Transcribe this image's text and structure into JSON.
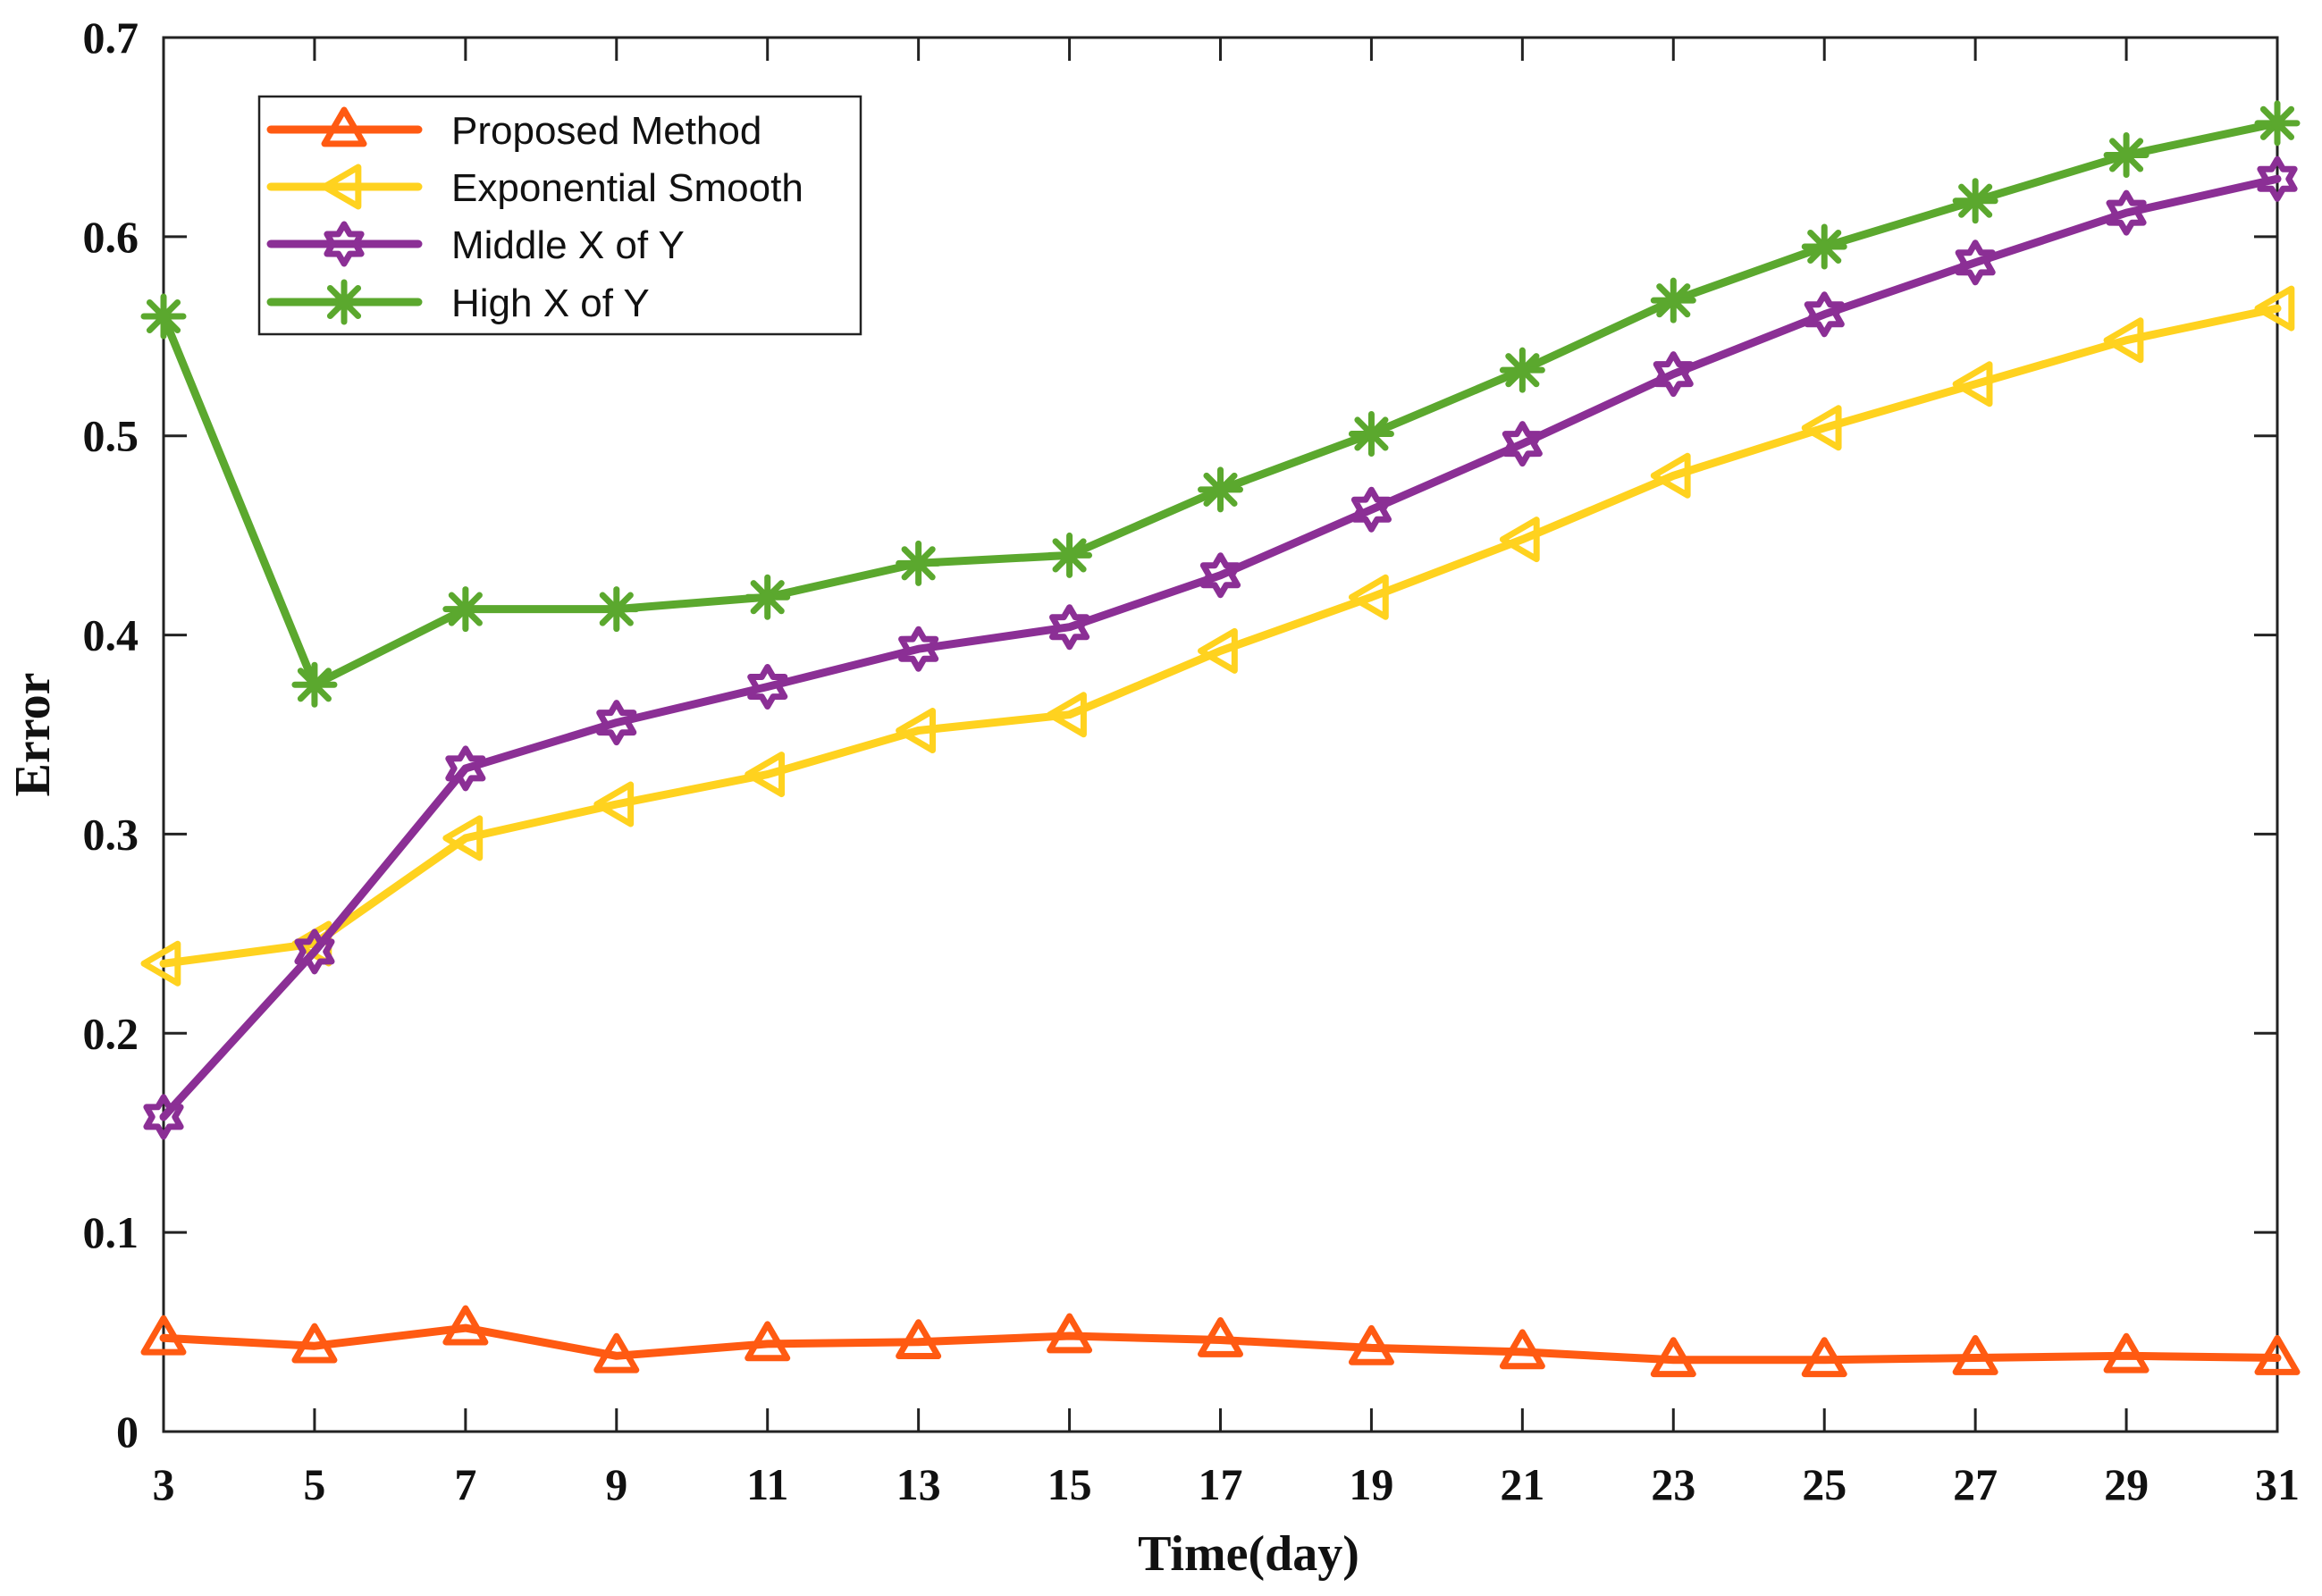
{
  "chart_data": {
    "type": "line",
    "title": "",
    "xlabel": "Time(day)",
    "ylabel": "Error",
    "x": [
      3,
      5,
      7,
      9,
      11,
      13,
      15,
      17,
      19,
      21,
      23,
      25,
      27,
      29,
      31
    ],
    "xlim": [
      3,
      31
    ],
    "ylim": [
      0,
      0.7
    ],
    "xticks": [
      "3",
      "5",
      "7",
      "9",
      "11",
      "13",
      "15",
      "17",
      "19",
      "21",
      "23",
      "25",
      "27",
      "29",
      "31"
    ],
    "yticks": [
      "0",
      "0.1",
      "0.2",
      "0.3",
      "0.4",
      "0.5",
      "0.6",
      "0.7"
    ],
    "ytick_values": [
      0,
      0.1,
      0.2,
      0.3,
      0.4,
      0.5,
      0.6,
      0.7
    ],
    "grid": false,
    "legend_position": "top-left",
    "series": [
      {
        "name": "Proposed Method",
        "color": "#FF5A12",
        "marker": "triangle-up",
        "values": [
          0.047,
          0.043,
          0.052,
          0.038,
          0.044,
          0.045,
          0.048,
          0.046,
          0.042,
          0.04,
          0.036,
          0.036,
          0.037,
          0.038,
          0.037
        ]
      },
      {
        "name": "Exponential Smooth",
        "color": "#FFD21F",
        "marker": "triangle-left",
        "values": [
          0.235,
          0.245,
          0.298,
          0.315,
          0.33,
          0.352,
          0.36,
          0.392,
          0.419,
          0.448,
          0.48,
          0.504,
          0.526,
          0.548,
          0.564
        ]
      },
      {
        "name": "Middle X of Y",
        "color": "#8B2F95",
        "marker": "hexagram",
        "values": [
          0.158,
          0.241,
          0.333,
          0.356,
          0.374,
          0.393,
          0.404,
          0.43,
          0.463,
          0.496,
          0.531,
          0.561,
          0.587,
          0.612,
          0.629
        ]
      },
      {
        "name": "High X of Y",
        "color": "#5BA82E",
        "marker": "asterisk",
        "values": [
          0.56,
          0.375,
          0.413,
          0.413,
          0.419,
          0.436,
          0.44,
          0.473,
          0.501,
          0.533,
          0.568,
          0.595,
          0.618,
          0.641,
          0.657
        ]
      }
    ]
  }
}
